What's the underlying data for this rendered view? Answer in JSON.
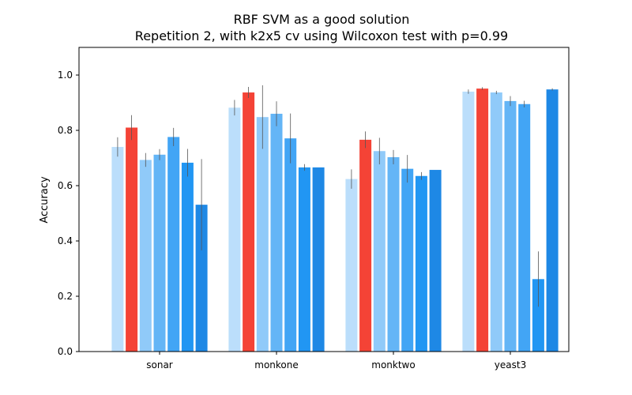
{
  "chart_data": {
    "type": "bar",
    "title": "RBF SVM as a good solution",
    "subtitle": "Repetition 2, with k2x5 cv using Wilcoxon test with p=0.99",
    "xlabel": "",
    "ylabel": "Accuracy",
    "ylim": [
      0,
      1.1
    ],
    "yticks": [
      "0.0",
      "0.2",
      "0.4",
      "0.6",
      "0.8",
      "1.0"
    ],
    "categories": [
      "sonar",
      "monkone",
      "monktwo",
      "yeast3"
    ],
    "grid": false,
    "bar_colors": [
      "#bbdefb",
      "#f44336",
      "#90caf9",
      "#64b5f6",
      "#42a5f5",
      "#2196f3",
      "#1e88e5",
      "#1e88e5"
    ],
    "error_color": "#555555",
    "series": [
      {
        "values": [
          0.74,
          0.882,
          0.624,
          0.94
        ],
        "errors": [
          0.035,
          0.028,
          0.035,
          0.008
        ]
      },
      {
        "values": [
          0.81,
          0.937,
          0.766,
          0.951
        ],
        "errors": [
          0.045,
          0.02,
          0.03,
          0.005
        ]
      },
      {
        "values": [
          0.693,
          0.848,
          0.725,
          0.937
        ],
        "errors": [
          0.025,
          0.115,
          0.048,
          0.006
        ]
      },
      {
        "values": [
          0.712,
          0.86,
          0.703,
          0.906
        ],
        "errors": [
          0.02,
          0.045,
          0.026,
          0.018
        ]
      },
      {
        "values": [
          0.776,
          0.771,
          0.661,
          0.895
        ],
        "errors": [
          0.033,
          0.09,
          0.05,
          0.012
        ]
      },
      {
        "values": [
          0.683,
          0.666,
          0.635,
          0.262
        ],
        "errors": [
          0.05,
          0.012,
          0.014,
          0.1
        ]
      },
      {
        "values": [
          0.531,
          0.666,
          0.657,
          0.948
        ],
        "errors": [
          0.165,
          0.0,
          0.0,
          0.004
        ]
      }
    ]
  }
}
